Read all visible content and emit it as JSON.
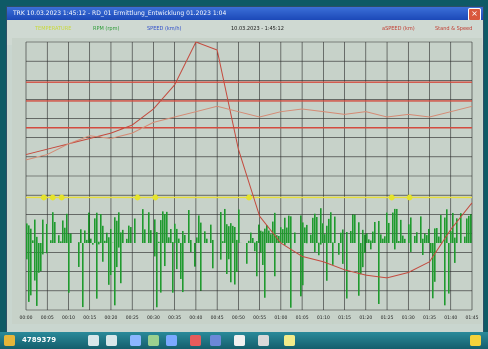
{
  "window": {
    "title": "TRK 10.03.2023 1:45:12 - RD_01 Ermittlung_Entwicklung 01.2023 1:04"
  },
  "legend": {
    "left_series_1": "TEMPERATURE",
    "left_series_2": "RPM (rpm)",
    "left_series_3": "SPEED (km/h)",
    "center_note": "10.03.2023 - 1:45:12",
    "right_series_1": "aSPEED (km)",
    "right_series_2": "Stand & Speed"
  },
  "colors": {
    "plot_background": "#c7d2c9",
    "grid": "#2b2b2b",
    "green_fill": "#1f9a2e",
    "speed_line": "#c44a3e",
    "rpm_line": "#d48a74",
    "limit_lines": "#d34b3f",
    "threshold_line": "#e8dd3a",
    "marker": "#e5e32d"
  },
  "x_ticks": [
    "00:00",
    "00:05",
    "00:10",
    "00:15",
    "00:20",
    "00:25",
    "00:30",
    "00:35",
    "00:40",
    "00:45",
    "00:50",
    "00:55",
    "01:00",
    "01:05",
    "01:10",
    "01:15",
    "01:20",
    "01:25",
    "01:30",
    "01:35",
    "01:40",
    "01:45"
  ],
  "chart_data": {
    "type": "line",
    "x": [
      0,
      1,
      2,
      3,
      4,
      5,
      6,
      7,
      8,
      9,
      10,
      11,
      12,
      13,
      14,
      15,
      16,
      17,
      18,
      19,
      20,
      21
    ],
    "series": [
      {
        "values": [
          58,
          60,
          62,
          64,
          66,
          69,
          75,
          84,
          100,
          97,
          60,
          35,
          25,
          20,
          18,
          15,
          13,
          12,
          14,
          18,
          30,
          40
        ]
      },
      {
        "values": [
          56,
          58,
          62,
          65,
          64,
          66,
          70,
          72,
          74,
          76,
          74,
          72,
          74,
          75,
          74,
          73,
          74,
          72,
          73,
          72,
          74,
          76
        ]
      }
    ],
    "limits": [
      85,
      78,
      68,
      42
    ]
  },
  "taskbar": {
    "label": "4789379"
  }
}
